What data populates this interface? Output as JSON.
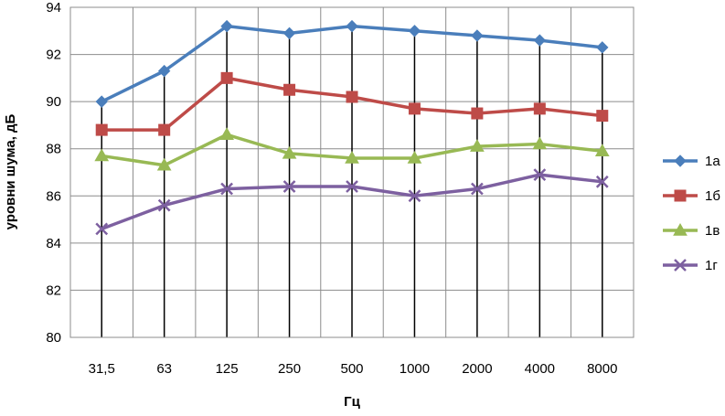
{
  "chart_data": {
    "type": "line",
    "categories": [
      "31,5",
      "63",
      "125",
      "250",
      "500",
      "1000",
      "2000",
      "4000",
      "8000"
    ],
    "series": [
      {
        "name": "1а",
        "color": "#4a7ebb",
        "marker": "diamond",
        "values": [
          90.0,
          91.3,
          93.2,
          92.9,
          93.2,
          93.0,
          92.8,
          92.6,
          92.3
        ]
      },
      {
        "name": "1б",
        "color": "#be4b48",
        "marker": "square",
        "values": [
          88.8,
          88.8,
          91.0,
          90.5,
          90.2,
          89.7,
          89.5,
          89.7,
          89.4
        ]
      },
      {
        "name": "1в",
        "color": "#98b954",
        "marker": "triangle",
        "values": [
          87.7,
          87.3,
          88.6,
          87.8,
          87.6,
          87.6,
          88.1,
          88.2,
          87.9
        ]
      },
      {
        "name": "1г",
        "color": "#7d60a0",
        "marker": "x",
        "values": [
          84.6,
          85.6,
          86.3,
          86.4,
          86.4,
          86.0,
          86.3,
          86.9,
          86.6
        ]
      }
    ],
    "xlabel": "Гц",
    "ylabel": "уровни шума, дБ",
    "ylim": [
      80,
      94
    ],
    "yticks": [
      "80",
      "82",
      "84",
      "86",
      "88",
      "90",
      "92",
      "94"
    ],
    "grid": true,
    "legend": "right"
  }
}
